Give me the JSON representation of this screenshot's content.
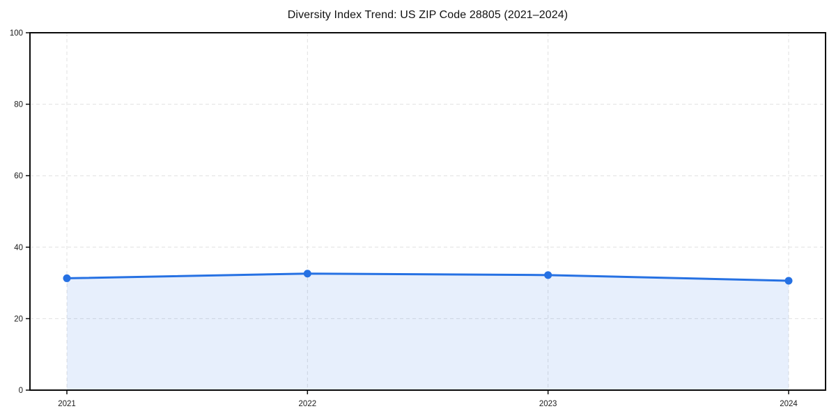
{
  "chart_data": {
    "type": "area",
    "title": "Diversity Index Trend: US ZIP Code 28805 (2021–2024)",
    "series_name": "Diversity Index",
    "categories": [
      "2021",
      "2022",
      "2023",
      "2024"
    ],
    "values": [
      31.3,
      32.6,
      32.2,
      30.6
    ],
    "xlabel": "",
    "ylabel": "",
    "ylim": [
      0,
      100
    ],
    "yticks": [
      0,
      20,
      40,
      60,
      80,
      100
    ],
    "grid": true,
    "grid_style": "dashed",
    "legend_position": "none",
    "colors": {
      "line": "#2671E3",
      "marker": "#2671E3",
      "area": "#2671E3",
      "grid": "#E0E0E0",
      "axis": "#0A0A0A",
      "tick_text": "#1A1A1A",
      "title_text": "#111111",
      "background": "#FFFFFF"
    }
  }
}
